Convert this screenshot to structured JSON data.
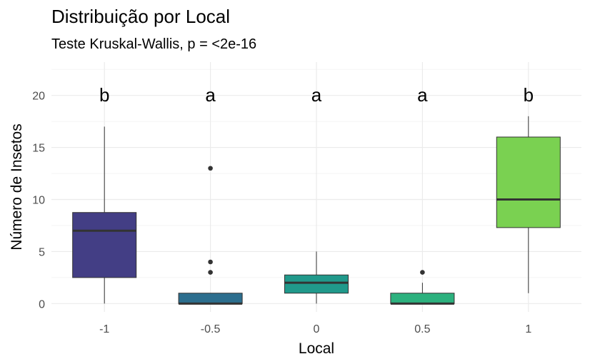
{
  "chart_data": {
    "type": "box",
    "title": "Distribuição por Local",
    "subtitle": "Teste Kruskal-Wallis, p = <2e-16",
    "xlabel": "Local",
    "ylabel": "Número de Insetos",
    "categories": [
      "-1",
      "-0.5",
      "0",
      "0.5",
      "1"
    ],
    "y_ticks": [
      "0",
      "5",
      "10",
      "15",
      "20"
    ],
    "ylim": [
      -0.8,
      23.2
    ],
    "grid": true,
    "legend": "none",
    "boxes": [
      {
        "category": "-1",
        "min": 0,
        "q1": 2.5,
        "median": 7,
        "q3": 8.75,
        "max": 17,
        "outliers": [],
        "color": "#433e85",
        "letter": "b"
      },
      {
        "category": "-0.5",
        "min": 0,
        "q1": 0,
        "median": 0,
        "q3": 1,
        "max": 1,
        "outliers": [
          3,
          4,
          13
        ],
        "color": "#2c6e8e",
        "letter": "a"
      },
      {
        "category": "0",
        "min": 0,
        "q1": 1,
        "median": 2,
        "q3": 2.75,
        "max": 5,
        "outliers": [],
        "color": "#20998b",
        "letter": "a"
      },
      {
        "category": "0.5",
        "min": 0,
        "q1": 0,
        "median": 0,
        "q3": 1,
        "max": 2,
        "outliers": [
          3
        ],
        "color": "#2cb17e",
        "letter": "a"
      },
      {
        "category": "1",
        "min": 1,
        "q1": 7.3,
        "median": 10,
        "q3": 16,
        "max": 18,
        "outliers": [],
        "color": "#7ad151",
        "letter": "b"
      }
    ]
  }
}
